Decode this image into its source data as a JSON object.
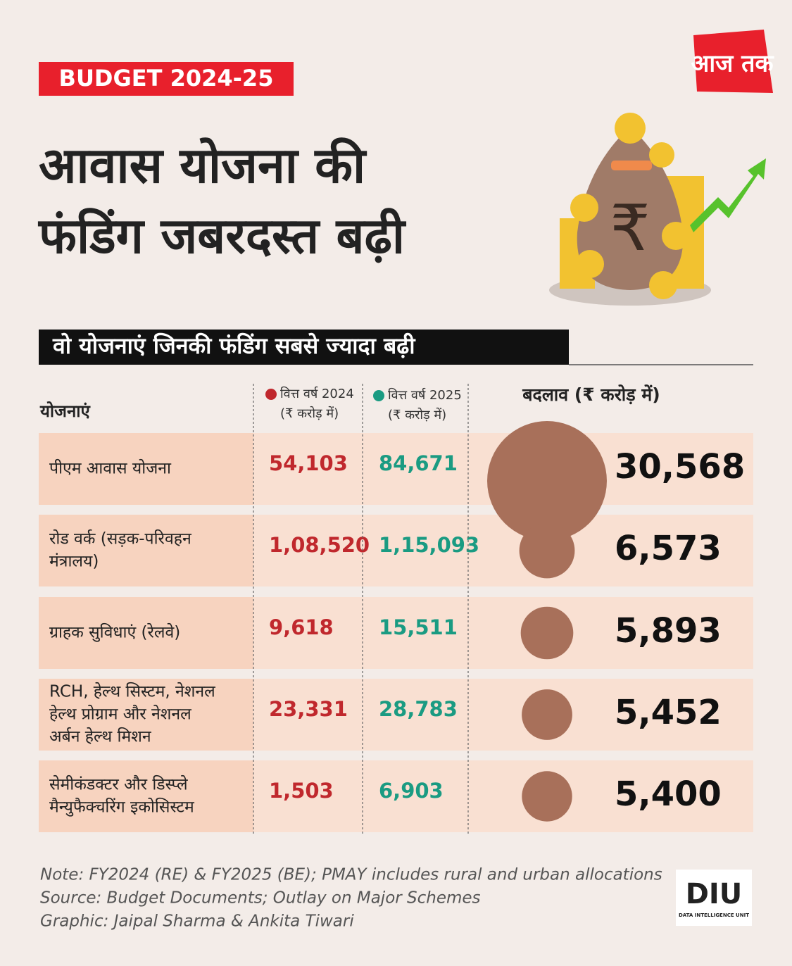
{
  "header": {
    "tag": "BUDGET 2024-25",
    "logo": "आज तक",
    "title": [
      "आवास योजना की",
      "फंडिंग जबरदस्त बढ़ी"
    ]
  },
  "subtitle": "वो योजनाएं जिनकी फंडिंग सबसे ज्यादा बढ़ी",
  "table": {
    "columns": {
      "scheme": "योजनाएं",
      "fy2024": [
        "वित्त वर्ष 2024",
        "(₹ करोड़ में)"
      ],
      "fy2025": [
        "वित्त वर्ष 2025",
        "(₹ करोड़ में)"
      ],
      "change": "बदलाव (₹ करोड़ में)"
    },
    "rows": [
      {
        "scheme": [
          "पीएम आवास योजना"
        ],
        "fy2024": "54,103",
        "fy2025": "84,671",
        "change": {
          "value": 30568,
          "label": "30,568"
        }
      },
      {
        "scheme": [
          "रोड वर्क (सड़क-परिवहन",
          "मंत्रालय)"
        ],
        "fy2024": "1,08,520",
        "fy2025": "1,15,093",
        "change": {
          "value": 6573,
          "label": "6,573"
        }
      },
      {
        "scheme": [
          "ग्राहक सुविधाएं (रेलवे)"
        ],
        "fy2024": "9,618",
        "fy2025": "15,511",
        "change": {
          "value": 5893,
          "label": "5,893"
        }
      },
      {
        "scheme": [
          "RCH, हेल्थ सिस्टम, नेशनल",
          "हेल्थ प्रोग्राम और नेशनल",
          "अर्बन हेल्थ मिशन"
        ],
        "fy2024": "23,331",
        "fy2025": "28,783",
        "change": {
          "value": 5452,
          "label": "5,452"
        }
      },
      {
        "scheme": [
          "सेमीकंडक्टर और डिस्प्ले",
          "मैन्युफैक्चरिंग इकोसिस्टम"
        ],
        "fy2024": "1,503",
        "fy2025": "6,903",
        "change": {
          "value": 5400,
          "label": "5,400"
        }
      }
    ]
  },
  "footer": {
    "notes": [
      "Note: FY2024 (RE) & FY2025 (BE); PMAY includes rural and urban allocations",
      "Source: Budget Documents; Outlay on Major Schemes",
      "Graphic: Jaipal Sharma & Ankita Tiwari"
    ],
    "brand": "DIU",
    "brand_sub": "DATA INTELLIGENCE UNIT"
  }
}
